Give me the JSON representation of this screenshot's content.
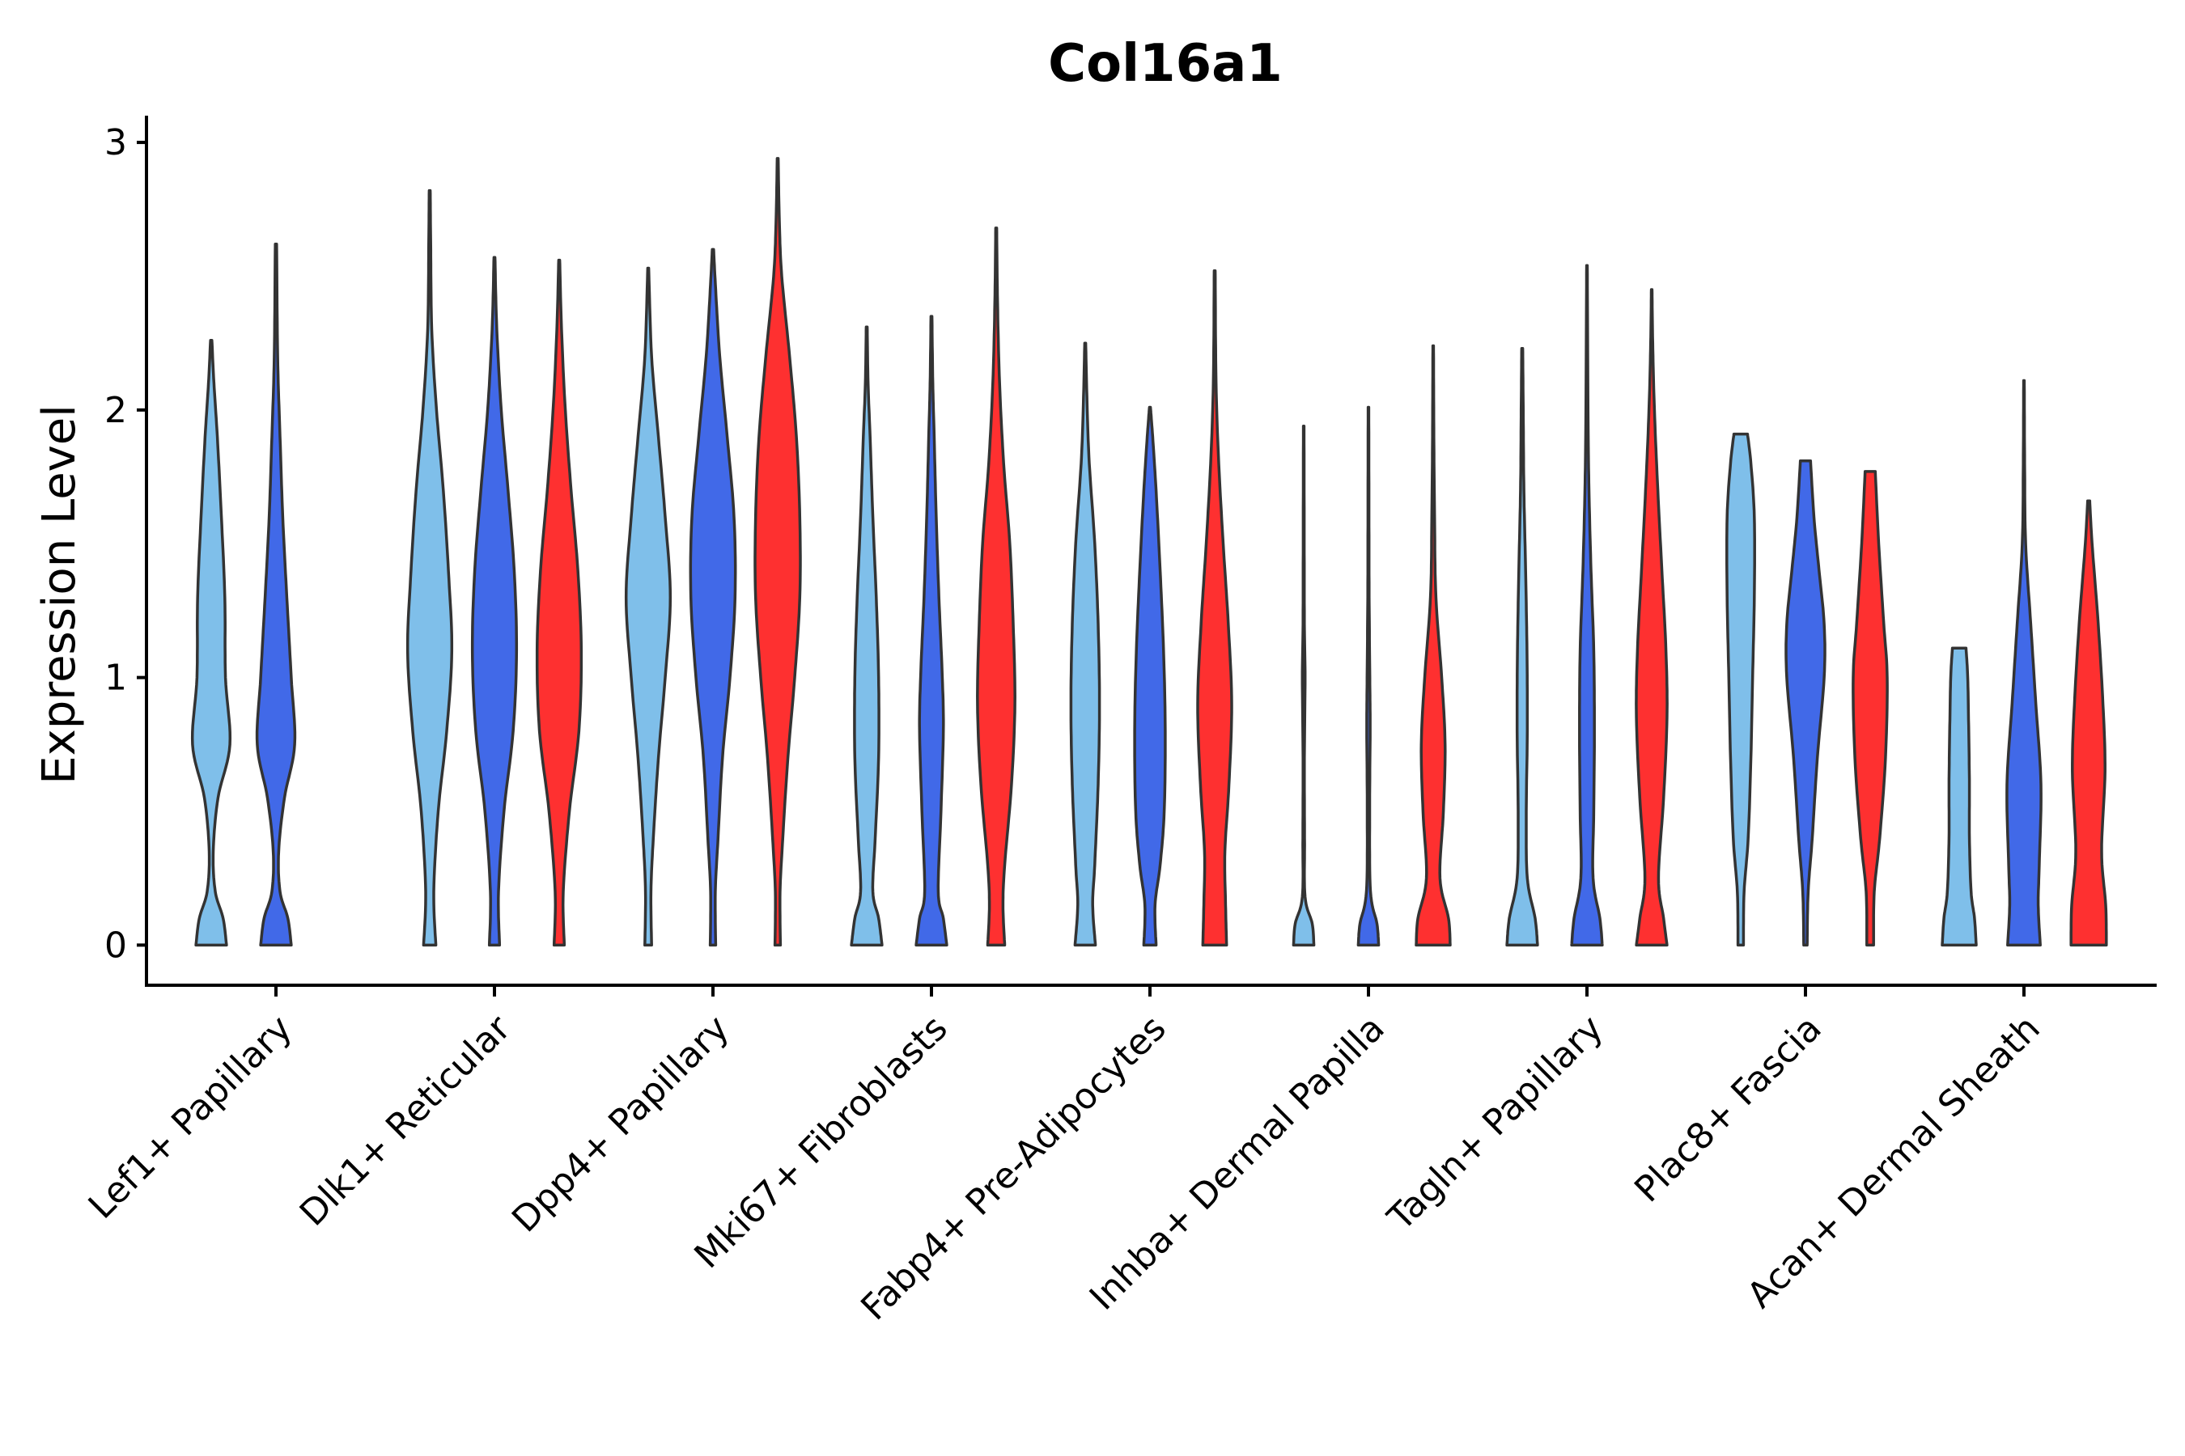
{
  "chart_data": {
    "type": "violin",
    "title": "Col16a1",
    "xlabel": "",
    "ylabel": "Expression Level",
    "ylim": [
      -0.15,
      3.1
    ],
    "yticks": [
      0,
      1,
      2,
      3
    ],
    "ytick_labels": [
      "0",
      "1",
      "2",
      "3"
    ],
    "grid": false,
    "legend": "none",
    "series_colors": [
      "#7fbfea",
      "#4169e8",
      "#fe3030"
    ],
    "categories": [
      "Lef1+ Papillary",
      "Dlk1+ Reticular",
      "Dpp4+ Papillary",
      "Mki67+ Fibroblasts",
      "Fabp4+ Pre-Adipocytes",
      "Inhba+ Dermal Papilla",
      "Tagln+ Papillary",
      "Plac8+ Fascia",
      "Acan+ Dermal Sheath"
    ],
    "violins": [
      {
        "category": "Lef1+ Papillary",
        "series": 0,
        "max": 2.26,
        "profile": [
          [
            0,
            0.45
          ],
          [
            0.1,
            0.35
          ],
          [
            0.2,
            0.12
          ],
          [
            0.35,
            0.06
          ],
          [
            0.55,
            0.2
          ],
          [
            0.75,
            0.55
          ],
          [
            1.0,
            0.42
          ],
          [
            1.3,
            0.4
          ],
          [
            1.6,
            0.3
          ],
          [
            1.9,
            0.18
          ],
          [
            2.1,
            0.08
          ],
          [
            2.26,
            0.02
          ]
        ]
      },
      {
        "category": "Lef1+ Papillary",
        "series": 1,
        "max": 2.62,
        "profile": [
          [
            0,
            0.45
          ],
          [
            0.1,
            0.35
          ],
          [
            0.2,
            0.12
          ],
          [
            0.35,
            0.08
          ],
          [
            0.55,
            0.25
          ],
          [
            0.75,
            0.55
          ],
          [
            1.0,
            0.45
          ],
          [
            1.3,
            0.32
          ],
          [
            1.6,
            0.2
          ],
          [
            1.9,
            0.12
          ],
          [
            2.2,
            0.05
          ],
          [
            2.62,
            0.02
          ]
        ]
      },
      {
        "category": "Dlk1+ Reticular",
        "series": 0,
        "max": 2.82,
        "profile": [
          [
            0,
            0.18
          ],
          [
            0.2,
            0.12
          ],
          [
            0.5,
            0.25
          ],
          [
            0.8,
            0.5
          ],
          [
            1.1,
            0.65
          ],
          [
            1.4,
            0.55
          ],
          [
            1.7,
            0.4
          ],
          [
            2.0,
            0.2
          ],
          [
            2.3,
            0.06
          ],
          [
            2.6,
            0.03
          ],
          [
            2.82,
            0.015
          ]
        ]
      },
      {
        "category": "Dlk1+ Reticular",
        "series": 1,
        "max": 2.57,
        "profile": [
          [
            0,
            0.15
          ],
          [
            0.2,
            0.12
          ],
          [
            0.5,
            0.28
          ],
          [
            0.8,
            0.55
          ],
          [
            1.1,
            0.65
          ],
          [
            1.4,
            0.58
          ],
          [
            1.7,
            0.4
          ],
          [
            2.0,
            0.2
          ],
          [
            2.3,
            0.07
          ],
          [
            2.57,
            0.015
          ]
        ]
      },
      {
        "category": "Dlk1+ Reticular",
        "series": 2,
        "max": 2.56,
        "profile": [
          [
            0,
            0.15
          ],
          [
            0.2,
            0.12
          ],
          [
            0.5,
            0.3
          ],
          [
            0.8,
            0.58
          ],
          [
            1.1,
            0.65
          ],
          [
            1.4,
            0.55
          ],
          [
            1.7,
            0.35
          ],
          [
            2.0,
            0.18
          ],
          [
            2.3,
            0.07
          ],
          [
            2.56,
            0.015
          ]
        ]
      },
      {
        "category": "Dpp4+ Papillary",
        "series": 0,
        "max": 2.53,
        "profile": [
          [
            0,
            0.1
          ],
          [
            0.2,
            0.08
          ],
          [
            0.4,
            0.15
          ],
          [
            0.7,
            0.3
          ],
          [
            1.0,
            0.5
          ],
          [
            1.3,
            0.65
          ],
          [
            1.6,
            0.5
          ],
          [
            1.9,
            0.3
          ],
          [
            2.2,
            0.1
          ],
          [
            2.53,
            0.015
          ]
        ]
      },
      {
        "category": "Dpp4+ Papillary",
        "series": 1,
        "max": 2.6,
        "profile": [
          [
            0,
            0.08
          ],
          [
            0.2,
            0.07
          ],
          [
            0.4,
            0.15
          ],
          [
            0.7,
            0.28
          ],
          [
            1.0,
            0.5
          ],
          [
            1.3,
            0.65
          ],
          [
            1.6,
            0.62
          ],
          [
            1.9,
            0.42
          ],
          [
            2.2,
            0.2
          ],
          [
            2.45,
            0.08
          ],
          [
            2.6,
            0.02
          ]
        ]
      },
      {
        "category": "Dpp4+ Papillary",
        "series": 2,
        "max": 2.94,
        "profile": [
          [
            0,
            0.08
          ],
          [
            0.2,
            0.07
          ],
          [
            0.4,
            0.15
          ],
          [
            0.7,
            0.3
          ],
          [
            1.0,
            0.5
          ],
          [
            1.3,
            0.65
          ],
          [
            1.6,
            0.65
          ],
          [
            1.9,
            0.55
          ],
          [
            2.2,
            0.35
          ],
          [
            2.5,
            0.12
          ],
          [
            2.7,
            0.05
          ],
          [
            2.94,
            0.015
          ]
        ]
      },
      {
        "category": "Mki67+ Fibroblasts",
        "series": 0,
        "max": 2.31,
        "profile": [
          [
            0,
            0.45
          ],
          [
            0.1,
            0.35
          ],
          [
            0.2,
            0.18
          ],
          [
            0.4,
            0.25
          ],
          [
            0.7,
            0.35
          ],
          [
            1.0,
            0.35
          ],
          [
            1.3,
            0.28
          ],
          [
            1.6,
            0.18
          ],
          [
            1.9,
            0.1
          ],
          [
            2.1,
            0.04
          ],
          [
            2.31,
            0.015
          ]
        ]
      },
      {
        "category": "Mki67+ Fibroblasts",
        "series": 1,
        "max": 2.35,
        "profile": [
          [
            0,
            0.45
          ],
          [
            0.1,
            0.35
          ],
          [
            0.2,
            0.2
          ],
          [
            0.5,
            0.28
          ],
          [
            0.8,
            0.35
          ],
          [
            1.0,
            0.32
          ],
          [
            1.3,
            0.22
          ],
          [
            1.6,
            0.14
          ],
          [
            1.9,
            0.08
          ],
          [
            2.1,
            0.04
          ],
          [
            2.35,
            0.015
          ]
        ]
      },
      {
        "category": "Mki67+ Fibroblasts",
        "series": 2,
        "max": 2.68,
        "profile": [
          [
            0,
            0.25
          ],
          [
            0.15,
            0.2
          ],
          [
            0.3,
            0.25
          ],
          [
            0.6,
            0.45
          ],
          [
            0.9,
            0.55
          ],
          [
            1.2,
            0.5
          ],
          [
            1.5,
            0.4
          ],
          [
            1.8,
            0.22
          ],
          [
            2.1,
            0.1
          ],
          [
            2.4,
            0.04
          ],
          [
            2.68,
            0.015
          ]
        ]
      },
      {
        "category": "Fabp4+ Pre-Adipocytes",
        "series": 0,
        "max": 2.25,
        "profile": [
          [
            0,
            0.3
          ],
          [
            0.15,
            0.22
          ],
          [
            0.3,
            0.28
          ],
          [
            0.6,
            0.38
          ],
          [
            0.9,
            0.42
          ],
          [
            1.2,
            0.38
          ],
          [
            1.5,
            0.28
          ],
          [
            1.8,
            0.12
          ],
          [
            2.0,
            0.06
          ],
          [
            2.25,
            0.015
          ]
        ]
      },
      {
        "category": "Fabp4+ Pre-Adipocytes",
        "series": 1,
        "max": 2.01,
        "profile": [
          [
            0,
            0.18
          ],
          [
            0.15,
            0.15
          ],
          [
            0.3,
            0.3
          ],
          [
            0.5,
            0.42
          ],
          [
            0.8,
            0.45
          ],
          [
            1.1,
            0.4
          ],
          [
            1.4,
            0.3
          ],
          [
            1.7,
            0.18
          ],
          [
            1.9,
            0.08
          ],
          [
            2.01,
            0.015
          ]
        ]
      },
      {
        "category": "Fabp4+ Pre-Adipocytes",
        "series": 2,
        "max": 2.52,
        "profile": [
          [
            0,
            0.35
          ],
          [
            0.15,
            0.32
          ],
          [
            0.35,
            0.3
          ],
          [
            0.6,
            0.42
          ],
          [
            0.9,
            0.5
          ],
          [
            1.2,
            0.4
          ],
          [
            1.5,
            0.25
          ],
          [
            1.8,
            0.12
          ],
          [
            2.1,
            0.04
          ],
          [
            2.52,
            0.015
          ]
        ]
      },
      {
        "category": "Inhba+ Dermal Papilla",
        "series": 0,
        "max": 1.94,
        "profile": [
          [
            0,
            0.3
          ],
          [
            0.08,
            0.25
          ],
          [
            0.18,
            0.04
          ],
          [
            0.4,
            0.025
          ],
          [
            0.7,
            0.02
          ],
          [
            1.0,
            0.04
          ],
          [
            1.2,
            0.02
          ],
          [
            1.5,
            0.015
          ],
          [
            1.94,
            0.01
          ]
        ]
      },
      {
        "category": "Inhba+ Dermal Papilla",
        "series": 1,
        "max": 2.01,
        "profile": [
          [
            0,
            0.3
          ],
          [
            0.08,
            0.25
          ],
          [
            0.2,
            0.06
          ],
          [
            0.5,
            0.035
          ],
          [
            0.8,
            0.05
          ],
          [
            1.0,
            0.04
          ],
          [
            1.3,
            0.02
          ],
          [
            1.6,
            0.015
          ],
          [
            2.01,
            0.01
          ]
        ]
      },
      {
        "category": "Inhba+ Dermal Papilla",
        "series": 2,
        "max": 2.24,
        "profile": [
          [
            0,
            0.5
          ],
          [
            0.1,
            0.45
          ],
          [
            0.25,
            0.2
          ],
          [
            0.5,
            0.3
          ],
          [
            0.75,
            0.35
          ],
          [
            1.0,
            0.25
          ],
          [
            1.3,
            0.08
          ],
          [
            1.6,
            0.04
          ],
          [
            1.9,
            0.02
          ],
          [
            2.24,
            0.01
          ]
        ]
      },
      {
        "category": "Tagln+ Papillary",
        "series": 0,
        "max": 2.23,
        "profile": [
          [
            0,
            0.45
          ],
          [
            0.1,
            0.38
          ],
          [
            0.25,
            0.15
          ],
          [
            0.5,
            0.12
          ],
          [
            0.8,
            0.15
          ],
          [
            1.1,
            0.14
          ],
          [
            1.4,
            0.1
          ],
          [
            1.7,
            0.05
          ],
          [
            2.0,
            0.03
          ],
          [
            2.23,
            0.015
          ]
        ]
      },
      {
        "category": "Tagln+ Papillary",
        "series": 1,
        "max": 2.54,
        "profile": [
          [
            0,
            0.45
          ],
          [
            0.1,
            0.38
          ],
          [
            0.25,
            0.18
          ],
          [
            0.5,
            0.2
          ],
          [
            0.8,
            0.22
          ],
          [
            1.1,
            0.2
          ],
          [
            1.4,
            0.12
          ],
          [
            1.7,
            0.06
          ],
          [
            2.0,
            0.03
          ],
          [
            2.54,
            0.01
          ]
        ]
      },
      {
        "category": "Tagln+ Papillary",
        "series": 2,
        "max": 2.45,
        "profile": [
          [
            0,
            0.45
          ],
          [
            0.1,
            0.35
          ],
          [
            0.25,
            0.2
          ],
          [
            0.55,
            0.35
          ],
          [
            0.85,
            0.45
          ],
          [
            1.1,
            0.42
          ],
          [
            1.4,
            0.3
          ],
          [
            1.7,
            0.18
          ],
          [
            2.0,
            0.08
          ],
          [
            2.25,
            0.03
          ],
          [
            2.45,
            0.01
          ]
        ]
      },
      {
        "category": "Plac8+ Fascia",
        "series": 0,
        "max": 1.91,
        "profile": [
          [
            0,
            0.08
          ],
          [
            0.2,
            0.1
          ],
          [
            0.4,
            0.22
          ],
          [
            0.7,
            0.3
          ],
          [
            1.0,
            0.35
          ],
          [
            1.3,
            0.4
          ],
          [
            1.6,
            0.4
          ],
          [
            1.8,
            0.3
          ],
          [
            1.91,
            0.2
          ]
        ]
      },
      {
        "category": "Plac8+ Fascia",
        "series": 1,
        "max": 1.81,
        "profile": [
          [
            0,
            0.05
          ],
          [
            0.2,
            0.08
          ],
          [
            0.4,
            0.2
          ],
          [
            0.7,
            0.35
          ],
          [
            1.0,
            0.55
          ],
          [
            1.2,
            0.55
          ],
          [
            1.4,
            0.4
          ],
          [
            1.6,
            0.25
          ],
          [
            1.81,
            0.15
          ]
        ]
      },
      {
        "category": "Plac8+ Fascia",
        "series": 2,
        "max": 1.77,
        "profile": [
          [
            0,
            0.1
          ],
          [
            0.2,
            0.12
          ],
          [
            0.4,
            0.28
          ],
          [
            0.7,
            0.45
          ],
          [
            1.0,
            0.5
          ],
          [
            1.2,
            0.4
          ],
          [
            1.5,
            0.25
          ],
          [
            1.77,
            0.15
          ]
        ]
      },
      {
        "category": "Acan+ Dermal Sheath",
        "series": 0,
        "max": 1.11,
        "profile": [
          [
            0,
            0.5
          ],
          [
            0.1,
            0.45
          ],
          [
            0.2,
            0.35
          ],
          [
            0.4,
            0.3
          ],
          [
            0.6,
            0.3
          ],
          [
            0.8,
            0.28
          ],
          [
            1.0,
            0.25
          ],
          [
            1.11,
            0.2
          ]
        ]
      },
      {
        "category": "Acan+ Dermal Sheath",
        "series": 1,
        "max": 2.11,
        "profile": [
          [
            0,
            0.48
          ],
          [
            0.15,
            0.42
          ],
          [
            0.3,
            0.45
          ],
          [
            0.6,
            0.5
          ],
          [
            0.9,
            0.35
          ],
          [
            1.2,
            0.2
          ],
          [
            1.5,
            0.05
          ],
          [
            1.8,
            0.02
          ],
          [
            2.11,
            0.01
          ]
        ]
      },
      {
        "category": "Acan+ Dermal Sheath",
        "series": 2,
        "max": 1.66,
        "profile": [
          [
            0,
            0.52
          ],
          [
            0.15,
            0.5
          ],
          [
            0.35,
            0.38
          ],
          [
            0.65,
            0.48
          ],
          [
            0.9,
            0.42
          ],
          [
            1.2,
            0.28
          ],
          [
            1.5,
            0.1
          ],
          [
            1.66,
            0.03
          ]
        ]
      }
    ]
  }
}
